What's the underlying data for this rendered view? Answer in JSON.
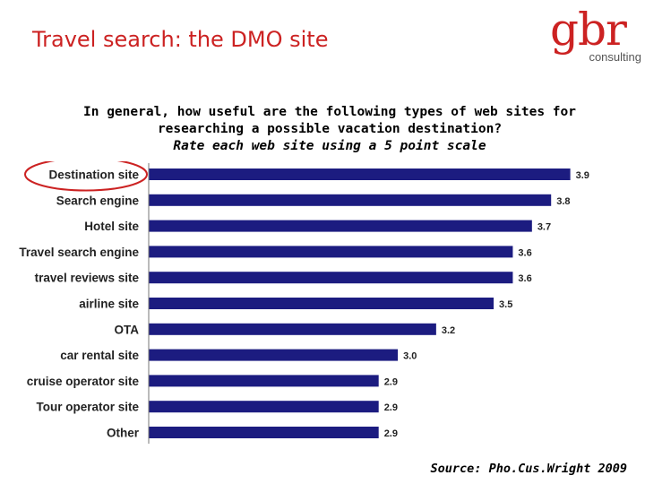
{
  "slide": {
    "title": "Travel search: the DMO site",
    "source": "Source: Pho.Cus.Wright 2009"
  },
  "logo": {
    "mark": "gbr",
    "sub": "consulting",
    "color": "#cc2222"
  },
  "question": {
    "line1": "In general, how useful are the following types of web sites for",
    "line2": "researching a possible vacation destination?",
    "line3": "Rate each web site using a 5 point scale"
  },
  "chart_data": {
    "type": "bar",
    "orientation": "horizontal",
    "categories": [
      "Destination site",
      "Search engine",
      "Hotel site",
      "Travel search engine",
      "travel reviews site",
      "airline site",
      "OTA",
      "car rental site",
      "cruise operator site",
      "Tour operator site",
      "Other"
    ],
    "values": [
      3.9,
      3.8,
      3.7,
      3.6,
      3.6,
      3.5,
      3.2,
      3.0,
      2.9,
      2.9,
      2.9
    ],
    "value_labels": [
      "3.9",
      "3.8",
      "3.7",
      "3.6",
      "3.6",
      "3.5",
      "3.2",
      "3.0",
      "2.9",
      "2.9",
      "2.9"
    ],
    "bar_color": "#1c1c80",
    "highlight_color": "#cc2222",
    "highlighted_category": "Destination site",
    "xlim": [
      1.7,
      4
    ],
    "grid": false,
    "legend": "none",
    "title": "",
    "xlabel": "",
    "ylabel": ""
  }
}
